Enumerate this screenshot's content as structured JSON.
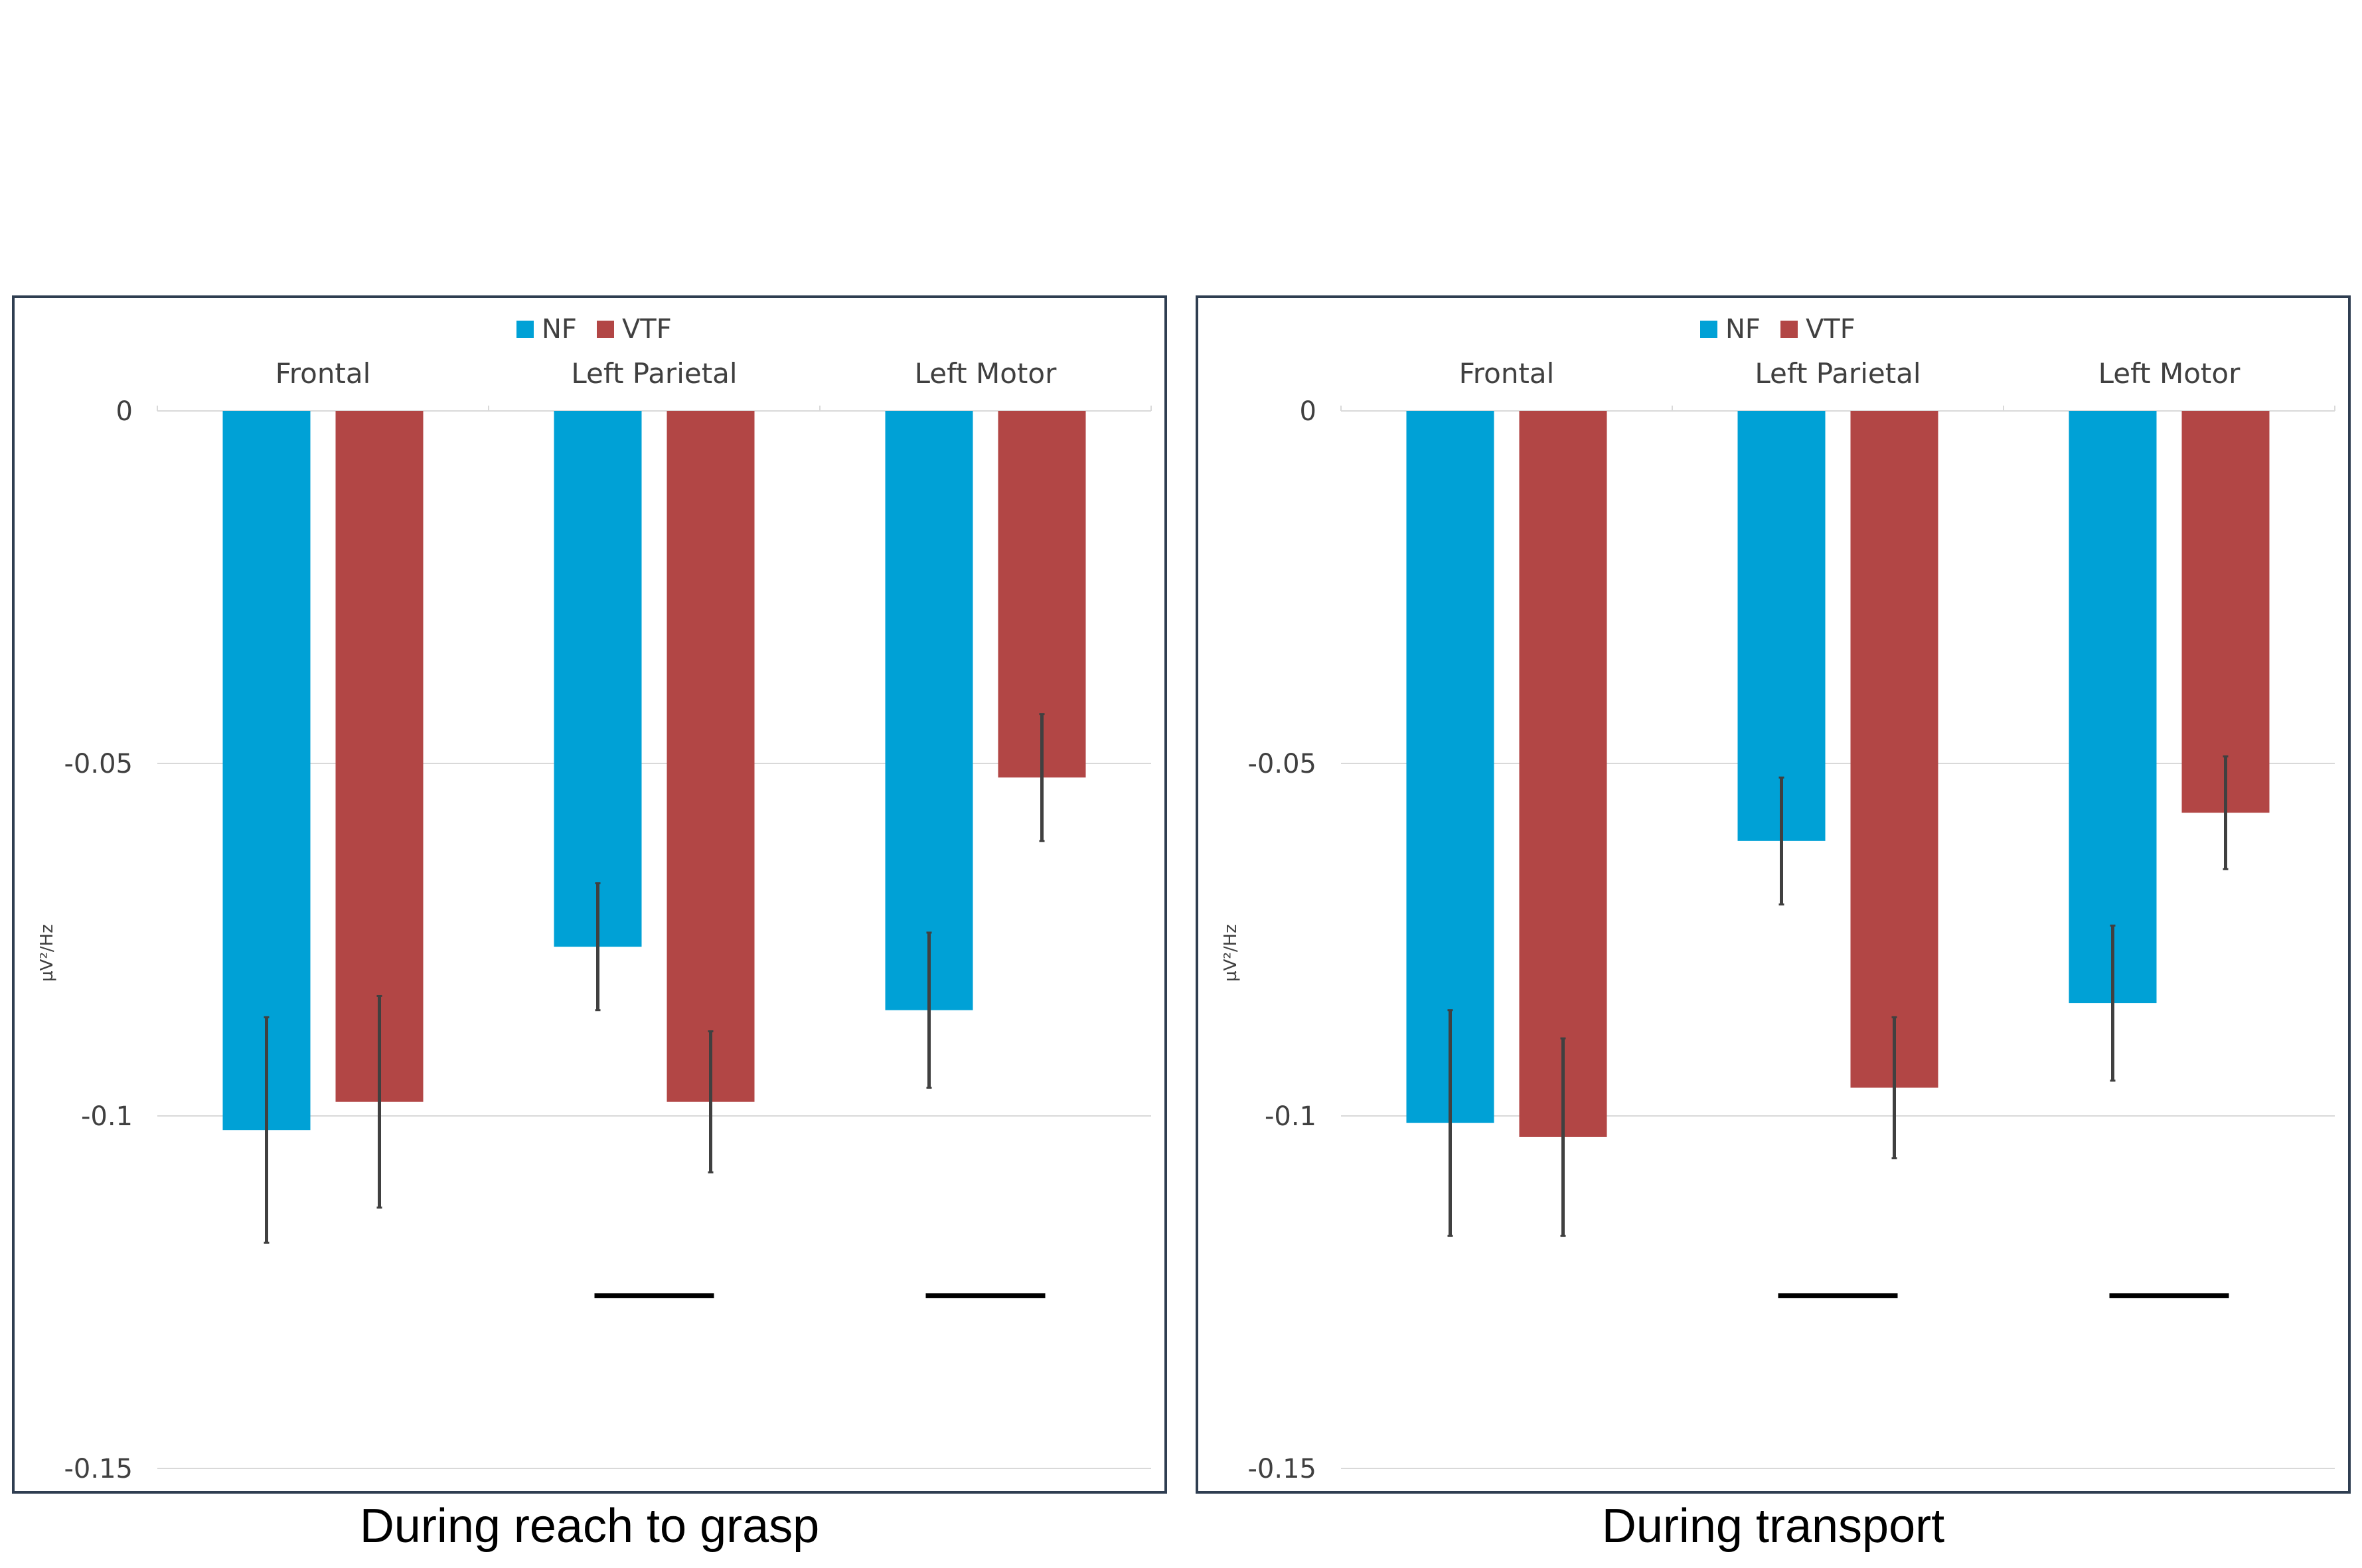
{
  "colors": {
    "NF": "#00a1d6",
    "VTF": "#b24645",
    "error_bar": "#404040",
    "significance_line": "#000000",
    "gridline": "#d9d9d9",
    "panel_border": "#2f3e51"
  },
  "chart_data": [
    {
      "type": "bar",
      "caption": "During reach to grasp",
      "ylabel": "µV²/Hz",
      "ylim": [
        -0.15,
        0
      ],
      "yticks": [
        0,
        -0.05,
        -0.1,
        -0.15
      ],
      "ytick_labels": [
        "0",
        "-0.05",
        "-0.1",
        "-0.15"
      ],
      "grid": true,
      "legend_position": "top",
      "categories": [
        "Frontal",
        "Left Parietal",
        "Left Motor"
      ],
      "series": [
        {
          "name": "NF",
          "values": [
            -0.102,
            -0.076,
            -0.085
          ],
          "errors": [
            0.016,
            0.009,
            0.011
          ]
        },
        {
          "name": "VTF",
          "values": [
            -0.098,
            -0.098,
            -0.052
          ],
          "errors": [
            0.015,
            0.01,
            0.009
          ]
        }
      ],
      "significance_markers": [
        "Left Parietal",
        "Left Motor"
      ]
    },
    {
      "type": "bar",
      "caption": "During transport",
      "ylabel": "µV²/Hz",
      "ylim": [
        -0.15,
        0
      ],
      "yticks": [
        0,
        -0.05,
        -0.1,
        -0.15
      ],
      "ytick_labels": [
        "0",
        "-0.05",
        "-0.1",
        "-0.15"
      ],
      "grid": true,
      "legend_position": "top",
      "categories": [
        "Frontal",
        "Left Parietal",
        "Left Motor"
      ],
      "series": [
        {
          "name": "NF",
          "values": [
            -0.101,
            -0.061,
            -0.084
          ],
          "errors": [
            0.016,
            0.009,
            0.011
          ]
        },
        {
          "name": "VTF",
          "values": [
            -0.103,
            -0.096,
            -0.057
          ],
          "errors": [
            0.014,
            0.01,
            0.008
          ]
        }
      ],
      "significance_markers": [
        "Left Parietal",
        "Left Motor"
      ]
    }
  ]
}
